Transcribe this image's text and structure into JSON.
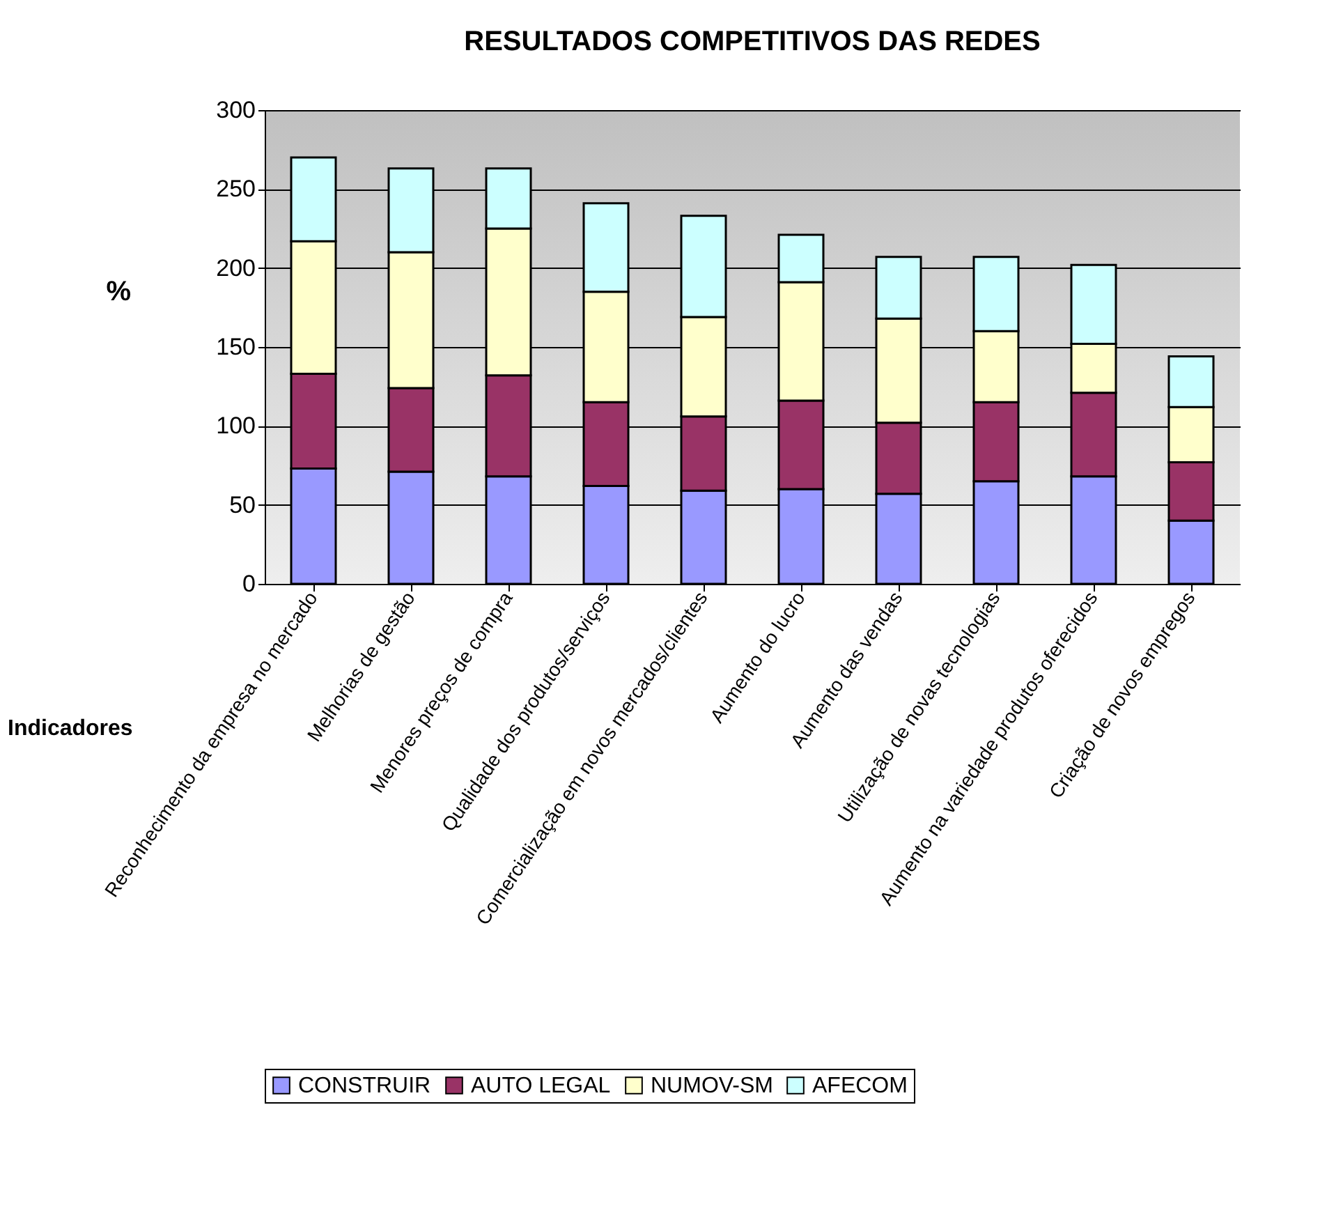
{
  "chart_data": {
    "type": "bar",
    "title": "RESULTADOS COMPETITIVOS DAS REDES",
    "xlabel": "Indicadores",
    "ylabel": "%",
    "stacked": true,
    "categories": [
      "Reconhecimento da empresa no mercado",
      "Melhorias de gestão",
      "Menores preços de compra",
      "Qualidade dos produtos/serviços",
      "Comercialização em novos mercados/clientes",
      "Aumento do lucro",
      "Aumento das vendas",
      "Utilização de novas tecnologias",
      "Aumento na variedade produtos oferecidos",
      "Criação de novos empregos"
    ],
    "series": [
      {
        "name": "CONSTRUIR",
        "color": "#9999ff",
        "values": [
          73,
          71,
          68,
          62,
          59,
          60,
          57,
          65,
          68,
          40
        ]
      },
      {
        "name": "AUTO LEGAL",
        "color": "#993366",
        "values": [
          60,
          53,
          64,
          53,
          47,
          56,
          45,
          50,
          53,
          37
        ]
      },
      {
        "name": "NUMOV-SM",
        "color": "#ffffcc",
        "values": [
          84,
          86,
          93,
          70,
          63,
          75,
          66,
          45,
          31,
          35
        ]
      },
      {
        "name": "AFECOM",
        "color": "#ccffff",
        "values": [
          53,
          53,
          38,
          56,
          64,
          30,
          39,
          47,
          50,
          32
        ]
      }
    ],
    "ylim": [
      0,
      300
    ],
    "yticks": [
      0,
      50,
      100,
      150,
      200,
      250,
      300
    ],
    "grid": "y",
    "legend": "bottom"
  }
}
